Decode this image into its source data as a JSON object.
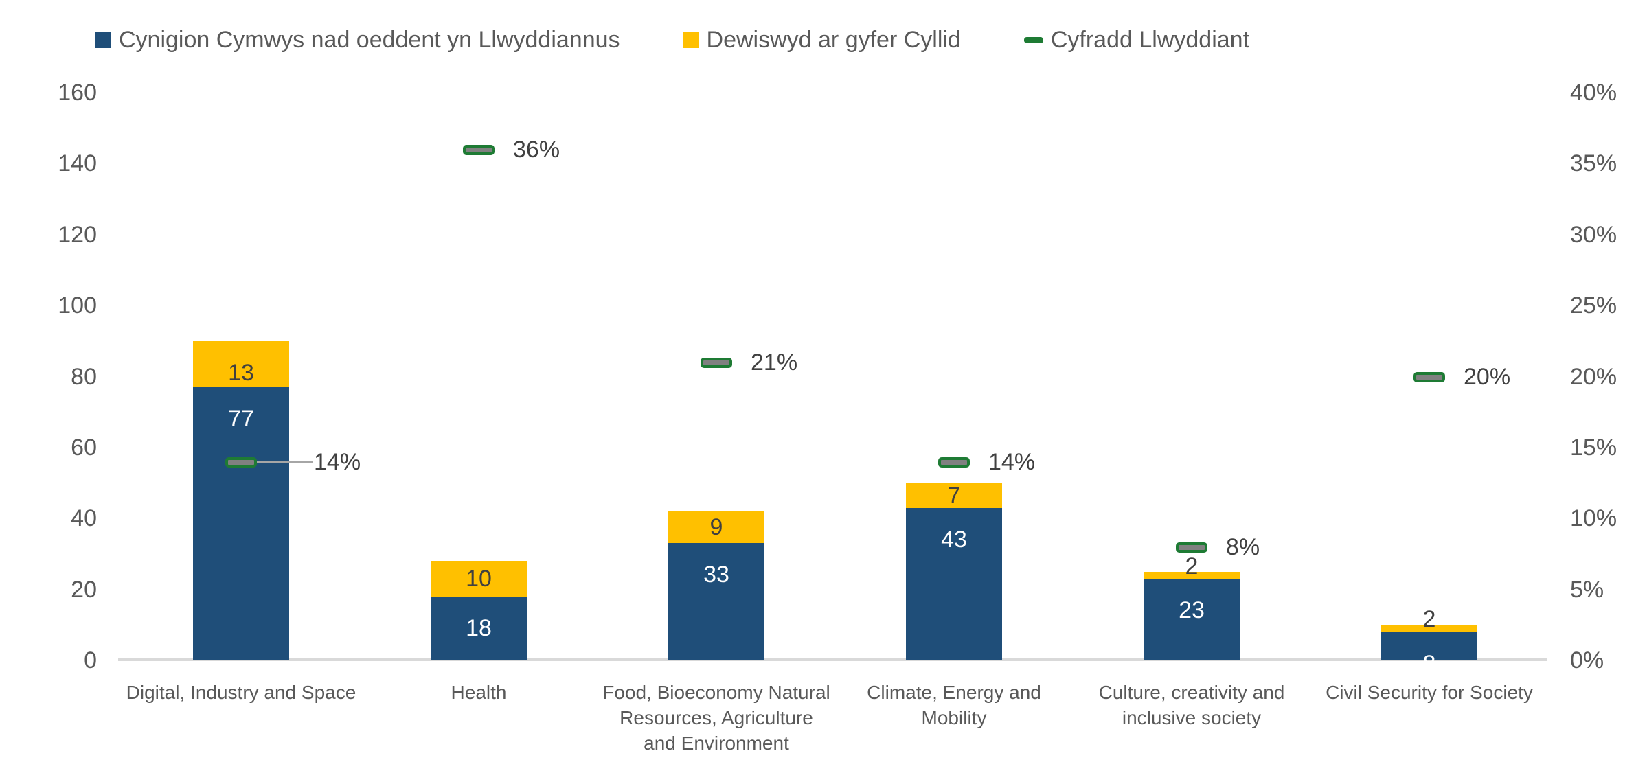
{
  "chart_data": {
    "type": "bar",
    "title": "",
    "xlabel": "",
    "ylabel": "",
    "grid": false,
    "legend_position": "top",
    "categories": [
      "Digital, Industry and Space",
      "Health",
      "Food, Bioeconomy Natural Resources, Agriculture and Environment",
      "Climate, Energy and Mobility",
      "Culture, creativity and inclusive society",
      "Civil Security for Society"
    ],
    "categories_lines": [
      [
        "Digital, Industry and Space"
      ],
      [
        "Health"
      ],
      [
        "Food, Bioeconomy Natural",
        "Resources, Agriculture",
        "and Environment"
      ],
      [
        "Climate, Energy and",
        "Mobility"
      ],
      [
        "Culture, creativity and",
        "inclusive society"
      ],
      [
        "Civil Security for Society"
      ]
    ],
    "series": [
      {
        "name": "Cynigion Cymwys nad oeddent yn Llwyddiannus",
        "type": "bar-stack",
        "color": "#1F4E79",
        "label_color": "#FFFFFF",
        "values": [
          77,
          18,
          33,
          43,
          23,
          8
        ]
      },
      {
        "name": "Dewiswyd ar gyfer Cyllid",
        "type": "bar-stack",
        "color": "#FFC000",
        "label_color": "#404040",
        "values": [
          13,
          10,
          9,
          7,
          2,
          2
        ]
      },
      {
        "name": "Cyfradd Llwyddiant",
        "type": "marker",
        "color": "#1E7B34",
        "fill": "#808080",
        "values": [
          14,
          36,
          21,
          14,
          8,
          20
        ],
        "labels": [
          "14%",
          "36%",
          "21%",
          "14%",
          "8%",
          "20%"
        ]
      }
    ],
    "left_axis": {
      "min": 0,
      "max": 160,
      "step": 20,
      "tick_values": [
        0,
        20,
        40,
        60,
        80,
        100,
        120,
        140,
        160
      ],
      "tick_labels": [
        "0",
        "20",
        "40",
        "60",
        "80",
        "100",
        "120",
        "140",
        "160"
      ]
    },
    "right_axis": {
      "min": 0,
      "max": 40,
      "step": 5,
      "unit": "%",
      "tick_values": [
        0,
        5,
        10,
        15,
        20,
        25,
        30,
        35,
        40
      ],
      "tick_labels": [
        "0%",
        "5%",
        "10%",
        "15%",
        "20%",
        "25%",
        "30%",
        "35%",
        "40%"
      ]
    },
    "colors": {
      "bar_blue": "#1F4E79",
      "bar_yellow": "#FFC000",
      "marker_green_border": "#1E7B34",
      "marker_gray_fill": "#808080",
      "axis_text": "#595959",
      "data_label_dark": "#404040",
      "data_label_light": "#FFFFFF",
      "axis_line": "#D9D9D9",
      "leader_line": "#A6A6A6"
    }
  }
}
